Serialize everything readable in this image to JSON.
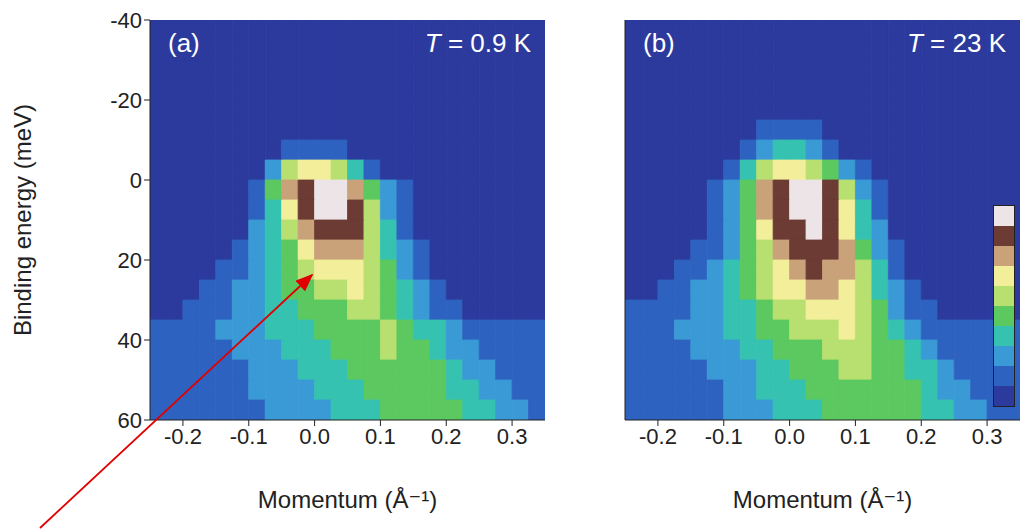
{
  "chart_data": [
    {
      "type": "heatmap",
      "panel_label": "(a)",
      "title": "T = 0.9 K",
      "x_label": "Momentum (Å⁻¹)",
      "y_label": "Binding energy (meV)",
      "xlim": [
        -0.25,
        0.35
      ],
      "xticks": [
        -0.2,
        -0.1,
        {
          "value": 0,
          "label": "0.0"
        },
        0.1,
        0.2,
        0.3
      ],
      "ylim": [
        60,
        -40
      ],
      "yticks": [
        -40,
        -20,
        0,
        20,
        40,
        60
      ],
      "colorbar_range": [
        0,
        9
      ],
      "x": [
        -0.2375,
        -0.2125,
        -0.1875,
        -0.1625,
        -0.1375,
        -0.1125,
        -0.0875,
        -0.0625,
        -0.0375,
        -0.0125,
        0.0125,
        0.0375,
        0.0625,
        0.0875,
        0.1125,
        0.1375,
        0.1625,
        0.1875,
        0.2125,
        0.2375,
        0.2625,
        0.2875,
        0.3125,
        0.3375
      ],
      "y": [
        -37.5,
        -32.5,
        -27.5,
        -22.5,
        -17.5,
        -12.5,
        -7.5,
        -2.5,
        2.5,
        7.5,
        12.5,
        17.5,
        22.5,
        27.5,
        32.5,
        37.5,
        42.5,
        47.5,
        52.5,
        57.5
      ],
      "cells": [
        [
          0,
          0,
          0,
          0,
          0,
          0,
          0,
          0,
          0,
          0,
          0,
          0,
          0,
          0,
          0,
          0,
          0,
          0,
          0,
          0,
          0,
          0,
          0,
          0
        ],
        [
          0,
          0,
          0,
          0,
          0,
          0,
          0,
          0,
          0,
          0,
          0,
          0,
          0,
          0,
          0,
          0,
          0,
          0,
          0,
          0,
          0,
          0,
          0,
          0
        ],
        [
          0,
          0,
          0,
          0,
          0,
          0,
          0,
          0,
          0,
          0,
          0,
          0,
          0,
          0,
          0,
          0,
          0,
          0,
          0,
          0,
          0,
          0,
          0,
          0
        ],
        [
          0,
          0,
          0,
          0,
          0,
          0,
          0,
          0,
          0,
          0,
          0,
          0,
          0,
          0,
          0,
          0,
          0,
          0,
          0,
          0,
          0,
          0,
          0,
          0
        ],
        [
          0,
          0,
          0,
          0,
          0,
          0,
          0,
          0,
          0,
          0,
          0,
          0,
          0,
          0,
          0,
          0,
          0,
          0,
          0,
          0,
          0,
          0,
          0,
          0
        ],
        [
          0,
          0,
          0,
          0,
          0,
          0,
          0,
          0,
          0,
          0,
          0,
          0,
          0,
          0,
          0,
          0,
          0,
          0,
          0,
          0,
          0,
          0,
          0,
          0
        ],
        [
          0,
          0,
          0,
          0,
          0,
          0,
          0,
          0,
          1,
          1,
          1,
          1,
          0,
          0,
          0,
          0,
          0,
          0,
          0,
          0,
          0,
          0,
          0,
          0
        ],
        [
          0,
          0,
          0,
          0,
          0,
          0,
          0,
          2,
          5,
          6,
          6,
          5,
          3,
          1,
          0,
          0,
          0,
          0,
          0,
          0,
          0,
          0,
          0,
          0
        ],
        [
          0,
          0,
          0,
          0,
          0,
          0,
          1,
          4,
          7,
          8,
          9,
          9,
          7,
          4,
          2,
          1,
          0,
          0,
          0,
          0,
          0,
          0,
          0,
          0
        ],
        [
          0,
          0,
          0,
          0,
          0,
          0,
          1,
          3,
          6,
          8,
          9,
          9,
          8,
          5,
          2,
          1,
          0,
          0,
          0,
          0,
          0,
          0,
          0,
          0
        ],
        [
          0,
          0,
          0,
          0,
          0,
          0,
          2,
          3,
          5,
          7,
          8,
          8,
          8,
          5,
          3,
          1,
          0,
          0,
          0,
          0,
          0,
          0,
          0,
          0
        ],
        [
          0,
          0,
          0,
          0,
          0,
          1,
          2,
          3,
          4,
          6,
          7,
          7,
          7,
          5,
          3,
          2,
          1,
          0,
          0,
          0,
          0,
          0,
          0,
          0
        ],
        [
          0,
          0,
          0,
          0,
          1,
          1,
          2,
          3,
          4,
          5,
          6,
          6,
          6,
          5,
          4,
          2,
          1,
          0,
          0,
          0,
          0,
          0,
          0,
          0
        ],
        [
          0,
          0,
          0,
          1,
          1,
          2,
          2,
          3,
          4,
          4,
          5,
          5,
          6,
          5,
          4,
          3,
          2,
          1,
          0,
          0,
          0,
          0,
          0,
          0
        ],
        [
          0,
          0,
          1,
          1,
          1,
          2,
          2,
          3,
          3,
          4,
          4,
          4,
          5,
          5,
          4,
          3,
          2,
          1,
          1,
          0,
          0,
          0,
          0,
          0
        ],
        [
          1,
          1,
          1,
          1,
          2,
          2,
          2,
          3,
          3,
          3,
          4,
          4,
          4,
          4,
          5,
          4,
          3,
          3,
          2,
          1,
          1,
          1,
          1,
          1
        ],
        [
          1,
          1,
          1,
          1,
          1,
          2,
          2,
          2,
          3,
          3,
          3,
          4,
          4,
          4,
          5,
          4,
          4,
          3,
          2,
          2,
          1,
          1,
          1,
          1
        ],
        [
          1,
          1,
          1,
          1,
          1,
          1,
          2,
          2,
          2,
          3,
          3,
          3,
          4,
          4,
          4,
          4,
          4,
          4,
          3,
          2,
          2,
          1,
          1,
          1
        ],
        [
          1,
          1,
          1,
          1,
          1,
          1,
          2,
          2,
          2,
          2,
          3,
          3,
          3,
          4,
          4,
          4,
          4,
          4,
          3,
          3,
          2,
          2,
          1,
          1
        ],
        [
          1,
          1,
          1,
          1,
          1,
          1,
          1,
          2,
          2,
          2,
          2,
          3,
          3,
          3,
          4,
          4,
          4,
          4,
          4,
          3,
          3,
          2,
          2,
          1
        ]
      ]
    },
    {
      "type": "heatmap",
      "panel_label": "(b)",
      "title": "T = 23 K",
      "x_label": "Momentum (Å⁻¹)",
      "tick_labels": "x",
      "xlim": [
        -0.25,
        0.35
      ],
      "xticks": [
        -0.2,
        -0.1,
        {
          "value": 0,
          "label": "0.0"
        },
        0.1,
        0.2,
        0.3
      ],
      "ylim": [
        60,
        -40
      ],
      "yticks": [
        -40,
        -20,
        0,
        20,
        40,
        60
      ],
      "colorbar_range": [
        0,
        9
      ],
      "x": [
        -0.2375,
        -0.2125,
        -0.1875,
        -0.1625,
        -0.1375,
        -0.1125,
        -0.0875,
        -0.0625,
        -0.0375,
        -0.0125,
        0.0125,
        0.0375,
        0.0625,
        0.0875,
        0.1125,
        0.1375,
        0.1625,
        0.1875,
        0.2125,
        0.2375,
        0.2625,
        0.2875,
        0.3125,
        0.3375
      ],
      "y": [
        -37.5,
        -32.5,
        -27.5,
        -22.5,
        -17.5,
        -12.5,
        -7.5,
        -2.5,
        2.5,
        7.5,
        12.5,
        17.5,
        22.5,
        27.5,
        32.5,
        37.5,
        42.5,
        47.5,
        52.5,
        57.5
      ],
      "cells": [
        [
          0,
          0,
          0,
          0,
          0,
          0,
          0,
          0,
          0,
          0,
          0,
          0,
          0,
          0,
          0,
          0,
          0,
          0,
          0,
          0,
          0,
          0,
          0,
          0
        ],
        [
          0,
          0,
          0,
          0,
          0,
          0,
          0,
          0,
          0,
          0,
          0,
          0,
          0,
          0,
          0,
          0,
          0,
          0,
          0,
          0,
          0,
          0,
          0,
          0
        ],
        [
          0,
          0,
          0,
          0,
          0,
          0,
          0,
          0,
          0,
          0,
          0,
          0,
          0,
          0,
          0,
          0,
          0,
          0,
          0,
          0,
          0,
          0,
          0,
          0
        ],
        [
          0,
          0,
          0,
          0,
          0,
          0,
          0,
          0,
          0,
          0,
          0,
          0,
          0,
          0,
          0,
          0,
          0,
          0,
          0,
          0,
          0,
          0,
          0,
          0
        ],
        [
          0,
          0,
          0,
          0,
          0,
          0,
          0,
          0,
          0,
          0,
          0,
          0,
          0,
          0,
          0,
          0,
          0,
          0,
          0,
          0,
          0,
          0,
          0,
          0
        ],
        [
          0,
          0,
          0,
          0,
          0,
          0,
          0,
          0,
          1,
          1,
          1,
          1,
          0,
          0,
          0,
          0,
          0,
          0,
          0,
          0,
          0,
          0,
          0,
          0
        ],
        [
          0,
          0,
          0,
          0,
          0,
          0,
          0,
          1,
          2,
          3,
          3,
          2,
          1,
          0,
          0,
          0,
          0,
          0,
          0,
          0,
          0,
          0,
          0,
          0
        ],
        [
          0,
          0,
          0,
          0,
          0,
          0,
          1,
          3,
          5,
          6,
          6,
          5,
          4,
          2,
          1,
          0,
          0,
          0,
          0,
          0,
          0,
          0,
          0,
          0
        ],
        [
          0,
          0,
          0,
          0,
          0,
          1,
          2,
          4,
          7,
          8,
          9,
          9,
          8,
          5,
          2,
          1,
          0,
          0,
          0,
          0,
          0,
          0,
          0,
          0
        ],
        [
          0,
          0,
          0,
          0,
          0,
          1,
          2,
          4,
          7,
          8,
          9,
          9,
          8,
          6,
          3,
          1,
          0,
          0,
          0,
          0,
          0,
          0,
          0,
          0
        ],
        [
          0,
          0,
          0,
          0,
          0,
          1,
          2,
          4,
          6,
          8,
          8,
          9,
          8,
          6,
          3,
          2,
          0,
          0,
          0,
          0,
          0,
          0,
          0,
          0
        ],
        [
          0,
          0,
          0,
          0,
          1,
          1,
          2,
          4,
          5,
          7,
          8,
          8,
          8,
          7,
          4,
          2,
          1,
          0,
          0,
          0,
          0,
          0,
          0,
          0
        ],
        [
          0,
          0,
          0,
          1,
          1,
          2,
          3,
          4,
          5,
          6,
          7,
          8,
          7,
          7,
          5,
          3,
          1,
          0,
          0,
          0,
          0,
          0,
          0,
          0
        ],
        [
          0,
          0,
          1,
          1,
          2,
          2,
          3,
          4,
          5,
          6,
          6,
          7,
          7,
          6,
          5,
          3,
          2,
          1,
          0,
          0,
          0,
          0,
          0,
          0
        ],
        [
          1,
          1,
          1,
          1,
          2,
          2,
          3,
          3,
          4,
          5,
          5,
          6,
          6,
          6,
          5,
          4,
          2,
          1,
          1,
          0,
          0,
          0,
          0,
          0
        ],
        [
          1,
          1,
          1,
          2,
          2,
          2,
          3,
          3,
          4,
          4,
          5,
          5,
          5,
          6,
          5,
          4,
          3,
          2,
          1,
          1,
          1,
          1,
          1,
          1
        ],
        [
          1,
          1,
          1,
          1,
          2,
          2,
          2,
          3,
          3,
          4,
          4,
          4,
          5,
          5,
          5,
          4,
          4,
          3,
          2,
          1,
          1,
          1,
          1,
          1
        ],
        [
          1,
          1,
          1,
          1,
          1,
          2,
          2,
          2,
          3,
          3,
          4,
          4,
          4,
          5,
          5,
          4,
          4,
          3,
          3,
          2,
          1,
          1,
          1,
          1
        ],
        [
          1,
          1,
          1,
          1,
          1,
          1,
          2,
          2,
          3,
          3,
          3,
          4,
          4,
          4,
          4,
          4,
          4,
          4,
          3,
          2,
          2,
          1,
          1,
          1
        ],
        [
          1,
          1,
          1,
          1,
          1,
          1,
          2,
          2,
          2,
          3,
          3,
          3,
          4,
          4,
          4,
          4,
          4,
          4,
          3,
          3,
          2,
          2,
          1,
          1
        ]
      ]
    }
  ]
}
